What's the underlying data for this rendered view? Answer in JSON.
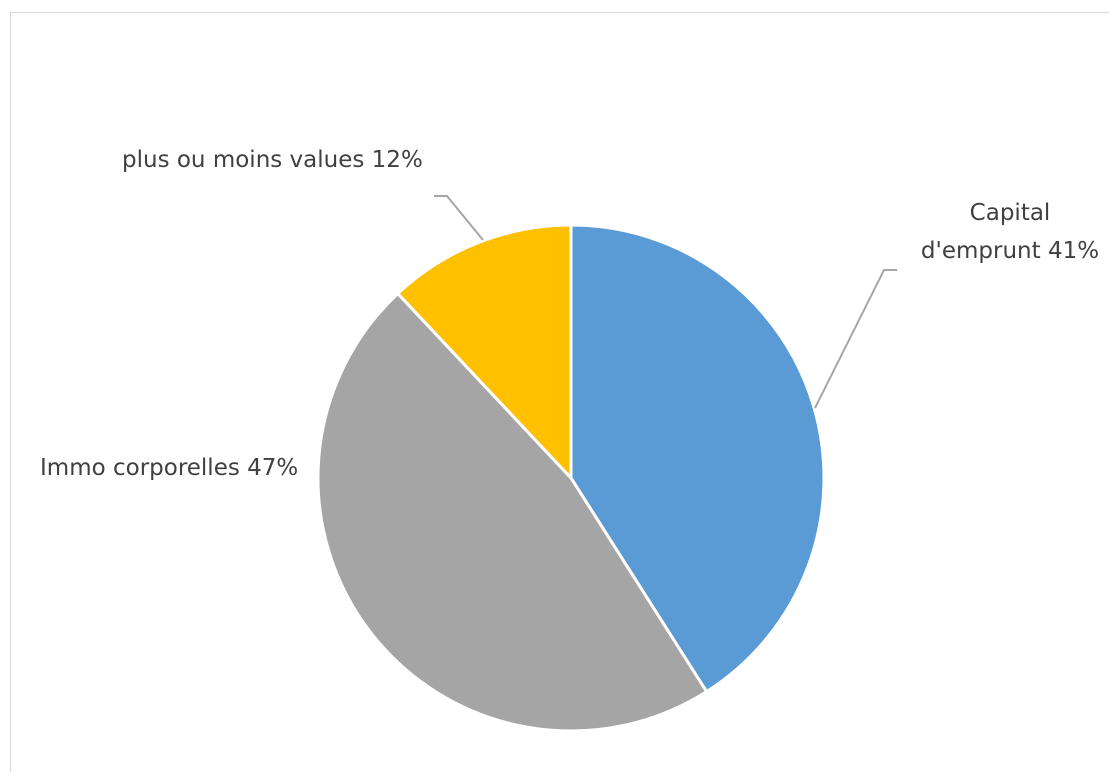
{
  "chart_data": {
    "type": "pie",
    "title": "",
    "slices": [
      {
        "name": "Capital d'emprunt",
        "value": 41,
        "label_lines": [
          "Capital",
          "d'emprunt 41%"
        ],
        "color": "#5b9bd5"
      },
      {
        "name": "Immo corporelles",
        "value": 47,
        "label_lines": [
          "Immo corporelles 47%"
        ],
        "color": "#a5a5a5"
      },
      {
        "name": "plus ou moins values",
        "value": 12,
        "label_lines": [
          "plus ou moins values 12%"
        ],
        "color": "#ffc000"
      }
    ],
    "legend": "none",
    "data_labels": "category and percentage"
  }
}
